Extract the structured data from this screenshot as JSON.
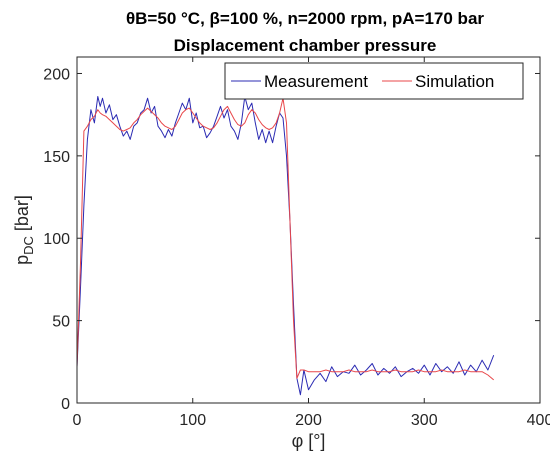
{
  "chart_data": {
    "type": "line",
    "title_line1": "θB=50 °C, β=100 %, n=2000 rpm, pA=170 bar",
    "title_line2": "Displacement chamber pressure",
    "xlabel": "φ [°]",
    "ylabel": "p_DC [bar]",
    "xlim": [
      0,
      400
    ],
    "ylim": [
      0,
      210
    ],
    "xticks": [
      0,
      100,
      200,
      300,
      400
    ],
    "yticks": [
      0,
      50,
      100,
      150,
      200
    ],
    "grid": false,
    "legend_position": "top-right",
    "series": [
      {
        "name": "Measurement",
        "color": "#2b2bb3",
        "x": [
          0,
          3,
          6,
          9,
          12,
          15,
          18,
          20,
          22,
          25,
          28,
          31,
          34,
          37,
          40,
          43,
          46,
          49,
          52,
          55,
          58,
          61,
          64,
          67,
          70,
          73,
          76,
          79,
          82,
          85,
          88,
          91,
          94,
          97,
          100,
          103,
          106,
          109,
          112,
          115,
          118,
          121,
          124,
          127,
          130,
          133,
          136,
          139,
          142,
          145,
          148,
          151,
          154,
          157,
          160,
          163,
          166,
          169,
          172,
          175,
          178,
          181,
          184,
          187,
          190,
          193,
          196,
          200,
          205,
          210,
          215,
          220,
          225,
          230,
          235,
          240,
          245,
          250,
          255,
          260,
          265,
          270,
          275,
          280,
          285,
          290,
          295,
          300,
          305,
          310,
          315,
          320,
          325,
          330,
          335,
          340,
          345,
          350,
          355,
          360
        ],
        "values": [
          22,
          70,
          120,
          160,
          178,
          170,
          186,
          180,
          185,
          176,
          181,
          172,
          175,
          168,
          162,
          165,
          160,
          168,
          170,
          176,
          178,
          185,
          176,
          180,
          168,
          165,
          161,
          166,
          162,
          170,
          176,
          182,
          178,
          185,
          170,
          176,
          167,
          168,
          161,
          164,
          168,
          174,
          180,
          173,
          178,
          168,
          165,
          160,
          170,
          186,
          178,
          182,
          170,
          160,
          166,
          158,
          165,
          158,
          168,
          176,
          173,
          150,
          110,
          60,
          15,
          5,
          20,
          8,
          14,
          18,
          13,
          22,
          16,
          19,
          18,
          23,
          17,
          20,
          24,
          17,
          21,
          18,
          22,
          16,
          19,
          21,
          18,
          23,
          17,
          24,
          19,
          22,
          18,
          25,
          17,
          23,
          19,
          26,
          20,
          29
        ]
      },
      {
        "name": "Simulation",
        "color": "#e8474a",
        "x": [
          0,
          3,
          6,
          9,
          12,
          15,
          18,
          20,
          22,
          25,
          28,
          31,
          34,
          37,
          40,
          43,
          46,
          49,
          52,
          55,
          58,
          61,
          64,
          67,
          70,
          73,
          76,
          79,
          82,
          85,
          88,
          91,
          94,
          97,
          100,
          103,
          106,
          109,
          112,
          115,
          118,
          121,
          124,
          127,
          130,
          133,
          136,
          139,
          142,
          145,
          148,
          151,
          154,
          157,
          160,
          163,
          166,
          169,
          172,
          175,
          178,
          181,
          184,
          187,
          190,
          193,
          196,
          200,
          205,
          210,
          215,
          220,
          225,
          230,
          235,
          240,
          245,
          250,
          255,
          260,
          265,
          270,
          275,
          280,
          285,
          290,
          295,
          300,
          305,
          310,
          315,
          320,
          325,
          330,
          335,
          340,
          345,
          350,
          355,
          360
        ],
        "values": [
          22,
          85,
          165,
          168,
          172,
          174,
          178,
          176,
          175,
          174,
          172,
          170,
          168,
          166,
          165,
          166,
          167,
          170,
          172,
          175,
          177,
          179,
          177,
          175,
          173,
          170,
          168,
          167,
          166,
          168,
          172,
          176,
          178,
          179,
          176,
          173,
          170,
          168,
          167,
          166,
          167,
          170,
          174,
          178,
          180,
          176,
          172,
          169,
          168,
          170,
          175,
          178,
          176,
          172,
          169,
          167,
          166,
          167,
          170,
          176,
          185,
          170,
          110,
          50,
          15,
          20,
          20,
          19,
          19,
          19,
          20,
          19,
          19,
          19,
          20,
          19,
          19,
          19,
          20,
          19,
          19,
          19,
          20,
          19,
          19,
          19,
          20,
          19,
          19,
          19,
          20,
          19,
          19,
          19,
          20,
          19,
          19,
          19,
          17,
          14
        ]
      }
    ]
  }
}
